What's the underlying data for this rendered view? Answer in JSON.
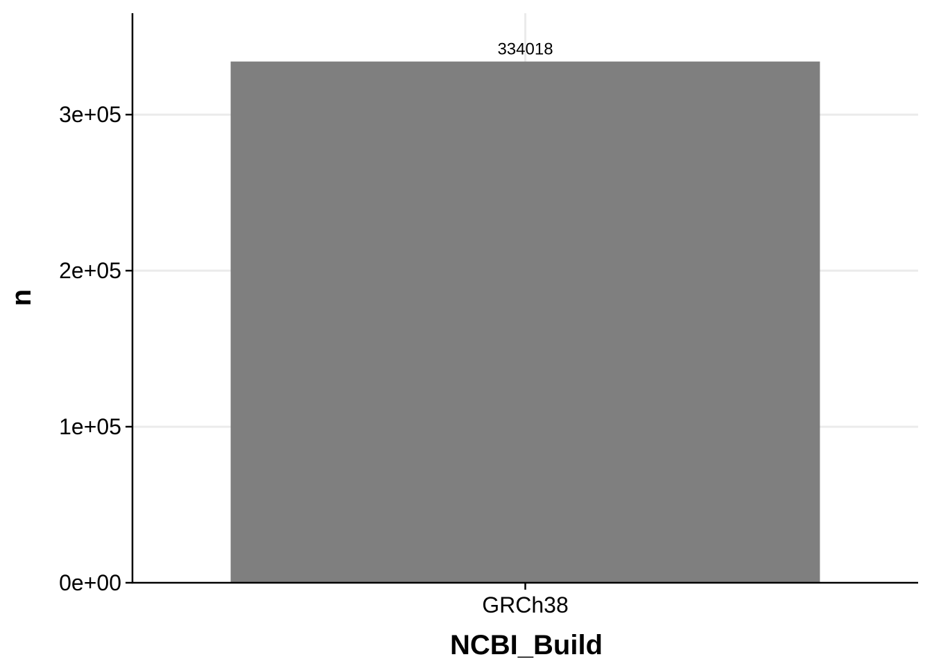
{
  "chart_data": {
    "type": "bar",
    "title": "",
    "xlabel": "NCBI_Build",
    "ylabel": "n",
    "categories": [
      "GRCh38"
    ],
    "values": [
      334018
    ],
    "data_labels": [
      "334018"
    ],
    "ylim": [
      0,
      365000
    ],
    "yticks": [
      0,
      100000,
      200000,
      300000
    ],
    "ytick_labels": [
      "0e+00",
      "1e+05",
      "2e+05",
      "3e+05"
    ],
    "grid": true,
    "legend": "none",
    "colors": {
      "bar": "#7f7f7f",
      "grid": "#ebebeb",
      "axis": "#000000"
    }
  }
}
